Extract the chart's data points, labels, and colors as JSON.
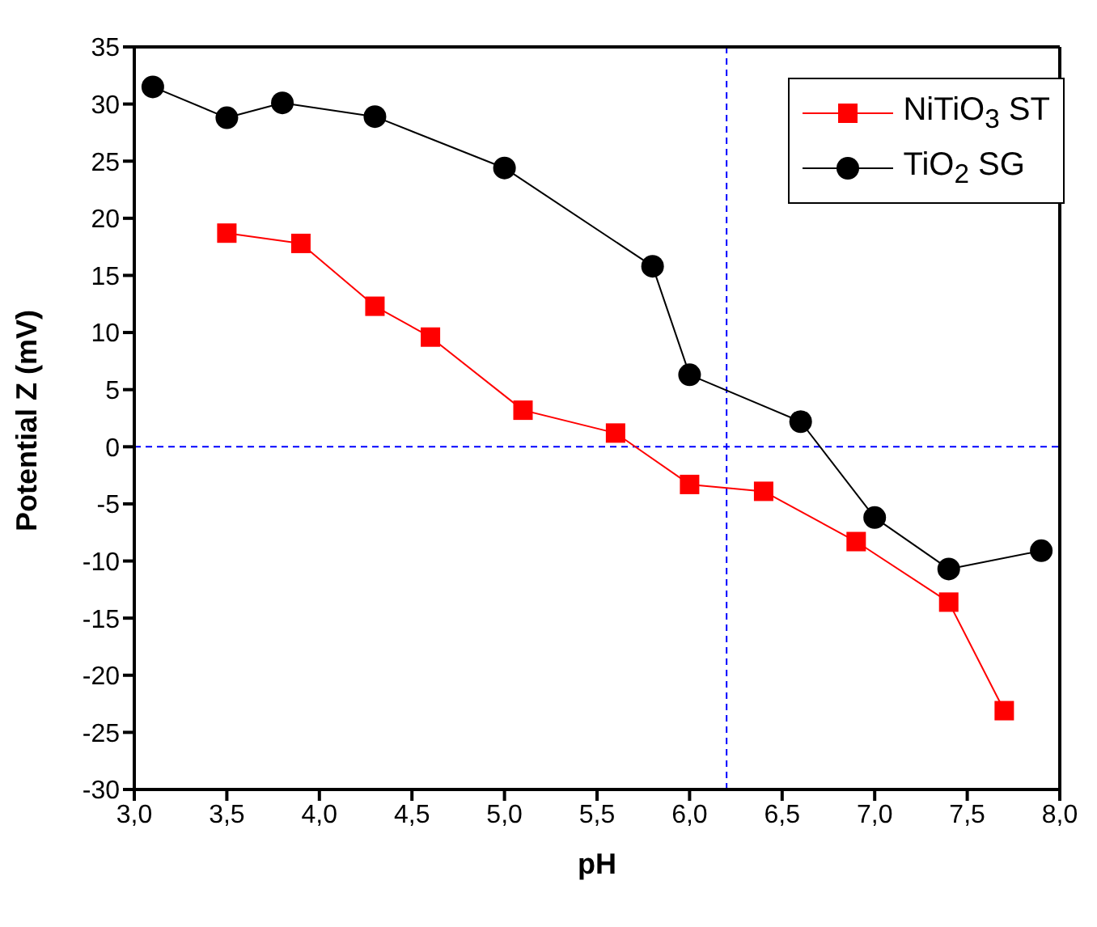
{
  "chart_data": {
    "type": "line",
    "xlabel": "pH",
    "ylabel": "Potential Z (mV)",
    "xlim": [
      3,
      8
    ],
    "xticks": [
      {
        "value": 3,
        "label": "3,0"
      },
      {
        "value": 3.5,
        "label": "3,5"
      },
      {
        "value": 4,
        "label": "4,0"
      },
      {
        "value": 4.5,
        "label": "4,5"
      },
      {
        "value": 5,
        "label": "5,0"
      },
      {
        "value": 5.5,
        "label": "5,5"
      },
      {
        "value": 6,
        "label": "6,0"
      },
      {
        "value": 6.5,
        "label": "6,5"
      },
      {
        "value": 7,
        "label": "7,0"
      },
      {
        "value": 7.5,
        "label": "7,5"
      },
      {
        "value": 8,
        "label": "8,0"
      }
    ],
    "ylim": [
      -30,
      35
    ],
    "yticks": [
      -30,
      -25,
      -20,
      -15,
      -10,
      -5,
      0,
      5,
      10,
      15,
      20,
      25,
      30,
      35
    ],
    "grid": false,
    "legend": "top right",
    "line_style": "solid",
    "series": [
      {
        "name": "NiTiO$_{3}$ ST",
        "color": "#ff0000",
        "marker": "square",
        "x": [
          3.5,
          3.9,
          4.3,
          4.6,
          5.1,
          5.6,
          6.0,
          6.4,
          6.9,
          7.4,
          7.7
        ],
        "values": [
          18.7,
          17.8,
          12.3,
          9.6,
          3.2,
          1.2,
          -3.3,
          -3.9,
          -8.3,
          -13.6,
          -23.1
        ]
      },
      {
        "name": "TiO$_{2}$ SG",
        "color": "#000000",
        "marker": "circle",
        "x": [
          3.1,
          3.5,
          3.8,
          4.3,
          5.0,
          5.8,
          6.0,
          6.6,
          7.0,
          7.4,
          7.9
        ],
        "values": [
          31.5,
          28.8,
          30.1,
          28.9,
          24.4,
          15.8,
          6.3,
          2.2,
          -6.2,
          -10.7,
          -9.1
        ]
      }
    ],
    "ref_lines": [
      {
        "axis": "x",
        "value": 6.2,
        "color": "#0000ff",
        "line_style": "dashed"
      },
      {
        "axis": "y",
        "value": 0,
        "color": "#0000ff",
        "line_style": "dashed"
      }
    ]
  }
}
